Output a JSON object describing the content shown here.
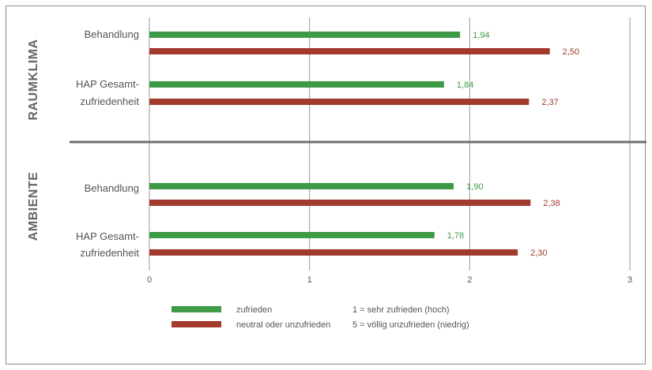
{
  "chart_data": {
    "type": "bar",
    "orientation": "horizontal",
    "xlim": [
      0,
      3
    ],
    "x_ticks": [
      "0",
      "1",
      "2",
      "3"
    ],
    "grid": "vertical",
    "groups": [
      {
        "section": "RAUMKLIMA",
        "items": [
          {
            "category": "Behandlung",
            "values": [
              1.94,
              2.5
            ],
            "labels": [
              "1,94",
              "2,50"
            ]
          },
          {
            "category": "HAP Gesamt-\nzufriedenheit",
            "values": [
              1.84,
              2.37
            ],
            "labels": [
              "1,84",
              "2,37"
            ]
          }
        ]
      },
      {
        "section": "AMBIENTE",
        "items": [
          {
            "category": "Behandlung",
            "values": [
              1.9,
              2.38
            ],
            "labels": [
              "1,90",
              "2,38"
            ]
          },
          {
            "category": "HAP Gesamt-\nzufriedenheit",
            "values": [
              1.78,
              2.3
            ],
            "labels": [
              "1,78",
              "2,30"
            ]
          }
        ]
      }
    ],
    "series": [
      {
        "name": "zufrieden",
        "color": "#3f9a47"
      },
      {
        "name": "neutral oder unzufrieden",
        "color": "#a23b2e"
      }
    ],
    "legend_notes": [
      "1 = sehr zufrieden (hoch)",
      "5 = völlig unzufrieden (niedrig)"
    ],
    "legend_placement": "bottom"
  }
}
